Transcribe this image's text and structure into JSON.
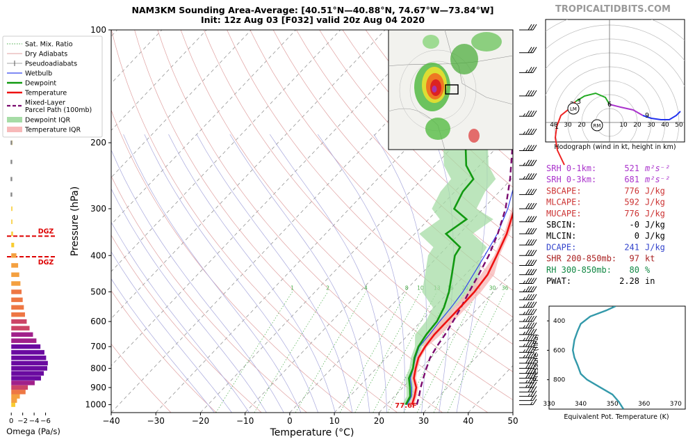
{
  "header": {
    "title_line1": "NAM3KM Sounding Area-Average: [40.51°N—40.88°N, 74.67°W—73.84°W]",
    "title_line2": "Init: 12z Aug 03 [F032] valid 20z Aug 04 2020",
    "brand": "TROPICALTIDBITS.COM"
  },
  "colors": {
    "temperature": "#ee1111",
    "dewpoint": "#119911",
    "wetbulb": "#3344ee",
    "parcel": "#7a0a6e",
    "dewpoint_iqr": "#a6dca6",
    "temperature_iqr": "#f7b9b9",
    "dry_adiabat": "#e0a0a0",
    "moist_adiabat": "#a8a8dd",
    "mixing_ratio": "#44aa44",
    "isotherm": "#888888",
    "dgz": "#dd0000",
    "hodo_red": "#ee2222",
    "hodo_green": "#22aa22",
    "hodo_purple": "#aa33cc",
    "hodo_blue": "#2233ee",
    "theta_e": "#3399aa"
  },
  "legend": {
    "items": [
      {
        "label": "Sat. Mix. Ratio",
        "kind": "mixing"
      },
      {
        "label": "Dry Adiabats",
        "kind": "dry"
      },
      {
        "label": "Pseudoadiabats",
        "kind": "moist"
      },
      {
        "label": "Wetbulb",
        "kind": "wetbulb"
      },
      {
        "label": "Dewpoint",
        "kind": "dewpoint"
      },
      {
        "label": "Temperature",
        "kind": "temperature"
      },
      {
        "label": "Mixed-Layer",
        "label2": "Parcel Path (100mb)",
        "kind": "parcel"
      },
      {
        "label": "Dewpoint IQR",
        "kind": "dew_iqr"
      },
      {
        "label": "Temperature IQR",
        "kind": "temp_iqr"
      }
    ]
  },
  "skewt": {
    "x_ticks": [
      -40,
      -30,
      -20,
      -10,
      0,
      10,
      20,
      30,
      40,
      50
    ],
    "xlim": [
      -40,
      50
    ],
    "y_ticks": [
      100,
      200,
      300,
      400,
      500,
      600,
      700,
      800,
      900,
      1000
    ],
    "ylim": [
      1050,
      100
    ],
    "xlabel": "Temperature (°C)",
    "ylabel": "Pressure (hPa)",
    "surface_label": "77.6F",
    "mixing_labels": [
      "1",
      "2",
      "4",
      "8",
      "10",
      "13",
      "16",
      "20",
      "24",
      "30",
      "36"
    ]
  },
  "chart_data": [
    {
      "type": "line",
      "title": "NAM3KM Sounding Area-Average: [40.51°N—40.88°N, 74.67°W—73.84°W]",
      "xlabel": "Temperature (°C)",
      "ylabel": "Pressure (hPa)",
      "xlim": [
        -40,
        50
      ],
      "ylim": [
        1050,
        100
      ],
      "y_scale": "log",
      "series": [
        {
          "name": "Temperature",
          "points": [
            [
              25.7,
              1000
            ],
            [
              24.5,
              950
            ],
            [
              23,
              900
            ],
            [
              20.5,
              850
            ],
            [
              18.8,
              800
            ],
            [
              17.2,
              750
            ],
            [
              16.3,
              700
            ],
            [
              15.8,
              650
            ],
            [
              15.8,
              600
            ],
            [
              15.8,
              550
            ],
            [
              15.7,
              500
            ],
            [
              15,
              450
            ],
            [
              13,
              400
            ],
            [
              10.6,
              350
            ],
            [
              7,
              300
            ],
            [
              3.3,
              250
            ],
            [
              -4.8,
              200
            ],
            [
              -11.6,
              150
            ],
            [
              -11.2,
              125
            ],
            [
              -7.9,
              110
            ],
            [
              -3.7,
              100
            ]
          ]
        },
        {
          "name": "Dewpoint",
          "points": [
            [
              24.3,
              1000
            ],
            [
              23.5,
              950
            ],
            [
              21.6,
              900
            ],
            [
              19.4,
              850
            ],
            [
              18.2,
              800
            ],
            [
              16.3,
              750
            ],
            [
              14.8,
              700
            ],
            [
              14,
              650
            ],
            [
              13.6,
              600
            ],
            [
              12.2,
              550
            ],
            [
              10,
              500
            ],
            [
              7,
              450
            ],
            [
              3.6,
              400
            ],
            [
              3,
              380
            ],
            [
              -3,
              350
            ],
            [
              -1.5,
              320
            ],
            [
              -6.5,
              300
            ],
            [
              -8.2,
              270
            ],
            [
              -8.5,
              250
            ],
            [
              -13,
              230
            ],
            [
              -18,
              200
            ],
            [
              -17,
              175
            ],
            [
              -25,
              155
            ],
            [
              -25,
              130
            ],
            [
              -25.5,
              110
            ],
            [
              -24,
              100
            ]
          ]
        },
        {
          "name": "Wetbulb",
          "points": [
            [
              24.6,
              1000
            ],
            [
              23.8,
              950
            ],
            [
              22,
              900
            ],
            [
              19.7,
              850
            ],
            [
              18.3,
              800
            ],
            [
              16.5,
              750
            ],
            [
              15,
              700
            ],
            [
              14.7,
              650
            ],
            [
              14.2,
              600
            ],
            [
              13.8,
              550
            ],
            [
              13.1,
              500
            ],
            [
              11.8,
              450
            ],
            [
              10.3,
              400
            ],
            [
              8.5,
              350
            ],
            [
              5.5,
              300
            ],
            [
              1,
              250
            ],
            [
              -4.8,
              200
            ],
            [
              -11,
              160
            ]
          ]
        },
        {
          "name": "Mixed-Layer Parcel Path (100mb)",
          "points": [
            [
              26.8,
              1000
            ],
            [
              25.5,
              950
            ],
            [
              24,
              900
            ],
            [
              22.6,
              850
            ],
            [
              21.2,
              800
            ],
            [
              19.8,
              750
            ],
            [
              18.9,
              700
            ],
            [
              18.2,
              650
            ],
            [
              17.2,
              600
            ],
            [
              16,
              550
            ],
            [
              14.5,
              500
            ],
            [
              13,
              450
            ],
            [
              11.2,
              400
            ],
            [
              8.6,
              350
            ],
            [
              5,
              300
            ],
            [
              -0.3,
              250
            ],
            [
              -7.4,
              200
            ],
            [
              -14.5,
              160
            ],
            [
              -19.5,
              130
            ],
            [
              -25.8,
              100
            ]
          ]
        }
      ]
    },
    {
      "type": "bar",
      "title": "Omega",
      "xlabel": "Omega (Pa/s)",
      "x_ticks": [
        0,
        -2,
        -4,
        -6
      ],
      "xlim": [
        1,
        -8
      ],
      "dgz_label": "DGZ",
      "dgz_pressures": [
        355,
        403
      ],
      "levels": [
        1000,
        975,
        950,
        925,
        900,
        875,
        850,
        825,
        800,
        775,
        750,
        725,
        700,
        675,
        650,
        625,
        600,
        575,
        550,
        525,
        500,
        475,
        450,
        425,
        400,
        375,
        350,
        325,
        300,
        200,
        150
      ],
      "values": [
        -0.7,
        -1.0,
        -1.5,
        -2.5,
        -2.9,
        -4.1,
        -5.2,
        -5.7,
        -6.3,
        -6.4,
        -6.1,
        -5.8,
        -5.1,
        -4.4,
        -3.8,
        -3.2,
        -2.7,
        -2.4,
        -2.2,
        -2.0,
        -1.8,
        -1.6,
        -1.4,
        -1.2,
        -0.9,
        -0.5,
        -0.3,
        -0.1,
        -0.05,
        -0.05,
        -0.05
      ]
    },
    {
      "type": "line",
      "title": "Hodograph (wind in kt, height in km)",
      "x_ticks": [
        "40",
        "30",
        "20",
        "10",
        "10",
        "20",
        "30",
        "40",
        "50"
      ],
      "height_labels": [
        "1",
        "2",
        "3",
        "6",
        "9"
      ],
      "storm_markers": [
        "LM",
        "RM"
      ],
      "segments": [
        {
          "color": "red",
          "points": [
            [
              -32.5,
              -30.5
            ],
            [
              -37.5,
              -20
            ],
            [
              -39,
              -11
            ],
            [
              -38,
              -3
            ],
            [
              -35,
              5
            ],
            [
              -30,
              9
            ],
            [
              -24.5,
              15
            ]
          ]
        },
        {
          "color": "green",
          "points": [
            [
              -24.5,
              15
            ],
            [
              -18,
              19
            ],
            [
              -10,
              21
            ],
            [
              -3,
              18
            ],
            [
              0,
              13
            ]
          ]
        },
        {
          "color": "purple",
          "points": [
            [
              0,
              13
            ],
            [
              8,
              11
            ],
            [
              17,
              9
            ],
            [
              24,
              5
            ]
          ]
        },
        {
          "color": "blue",
          "points": [
            [
              24,
              5
            ],
            [
              30,
              3
            ],
            [
              37,
              2
            ],
            [
              43,
              2
            ],
            [
              48,
              5
            ],
            [
              51,
              8
            ]
          ]
        }
      ],
      "lm": [
        -26,
        10
      ],
      "rm": [
        -9,
        -2
      ]
    },
    {
      "type": "line",
      "title": "Equivalent Pot. Temperature",
      "xlabel": "Equivalent Pot. Temperature (K)",
      "ylabel": "Pressure (hPa)",
      "x_ticks": [
        330,
        340,
        350,
        360,
        370
      ],
      "y_ticks": [
        400,
        600,
        800
      ],
      "xlim": [
        330,
        373
      ],
      "ylim": [
        1000,
        300
      ],
      "points": [
        [
          351,
          300
        ],
        [
          348,
          330
        ],
        [
          343,
          370
        ],
        [
          340,
          420
        ],
        [
          339,
          470
        ],
        [
          338,
          530
        ],
        [
          337.5,
          600
        ],
        [
          338,
          650
        ],
        [
          339,
          700
        ],
        [
          340,
          760
        ],
        [
          342,
          800
        ],
        [
          346,
          850
        ],
        [
          350,
          900
        ],
        [
          352,
          950
        ],
        [
          353.5,
          1000
        ]
      ]
    }
  ],
  "wind_barbs": {
    "pressures": [
      100,
      115,
      130,
      150,
      170,
      190,
      210,
      230,
      250,
      275,
      300,
      325,
      350,
      375,
      400,
      425,
      450,
      475,
      500,
      525,
      550,
      575,
      600,
      625,
      650,
      675,
      700,
      725,
      750,
      775,
      800,
      825,
      850,
      875,
      900,
      925,
      950,
      975,
      1000
    ],
    "speeds_kt": [
      30,
      30,
      35,
      40,
      45,
      45,
      45,
      45,
      45,
      40,
      40,
      40,
      40,
      40,
      40,
      40,
      40,
      45,
      45,
      45,
      45,
      45,
      45,
      45,
      45,
      45,
      45,
      45,
      45,
      40,
      40,
      40,
      40,
      35,
      35,
      30,
      25,
      20,
      15
    ]
  },
  "indices": [
    {
      "label": "SRH 0-1km:",
      "value": "521",
      "unit": "m²s⁻²",
      "color": "#aa33cc",
      "unit_italic": true
    },
    {
      "label": "SRH 0-3km:",
      "value": "681",
      "unit": "m²s⁻²",
      "color": "#aa33cc",
      "unit_italic": true
    },
    {
      "label": "SBCAPE:",
      "value": "776",
      "unit": "J/kg",
      "color": "#cc3333"
    },
    {
      "label": "MLCAPE:",
      "value": "592",
      "unit": "J/kg",
      "color": "#cc3333"
    },
    {
      "label": "MUCAPE:",
      "value": "776",
      "unit": "J/kg",
      "color": "#cc3333"
    },
    {
      "label": "SBCIN:",
      "value": "-0",
      "unit": "J/kg",
      "color": "#000000"
    },
    {
      "label": "MLCIN:",
      "value": "0",
      "unit": "J/kg",
      "color": "#000000"
    },
    {
      "label": "DCAPE:",
      "value": "241",
      "unit": "J/kg",
      "color": "#3344cc"
    },
    {
      "label": "SHR 200-850mb:",
      "value": "97",
      "unit": "kt",
      "color": "#aa2222"
    },
    {
      "label": "RH 300-850mb:",
      "value": "80",
      "unit": "%",
      "color": "#118844"
    },
    {
      "label": "PWAT:",
      "value": "2.28",
      "unit": "in",
      "color": "#000000"
    }
  ]
}
